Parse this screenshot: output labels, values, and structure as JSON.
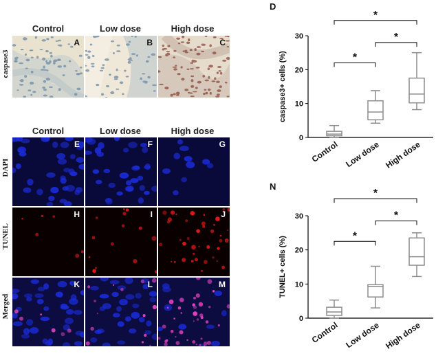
{
  "ihc": {
    "col_headers": [
      "Control",
      "Low dose",
      "High dose"
    ],
    "row_label": "caspase3",
    "panels": [
      "A",
      "B",
      "C"
    ]
  },
  "fluor": {
    "col_headers": [
      "Control",
      "Low dose",
      "High dose"
    ],
    "row_labels": [
      "DAPI",
      "TUNEL",
      "Merged"
    ],
    "panels": [
      [
        "E",
        "F",
        "G"
      ],
      [
        "H",
        "I",
        "J"
      ],
      [
        "K",
        "L",
        "M"
      ]
    ]
  },
  "colors": {
    "box_stroke": "#8c8c8c",
    "ihc_bg": "#efe4cf",
    "nuclei_blue": "#1a2bd6",
    "tunel_red": "#e01a1a"
  },
  "chart_data": [
    {
      "type": "box",
      "panel_letter": "D",
      "ylabel": "caspase3+ cells (%)",
      "categories": [
        "Control",
        "Low dose",
        "High dose"
      ],
      "ylim": [
        0,
        30
      ],
      "yticks": [
        0,
        10,
        20,
        30
      ],
      "boxes": [
        {
          "min": 0,
          "q1": 0.5,
          "median": 1.0,
          "q3": 1.8,
          "max": 3.5
        },
        {
          "min": 4.2,
          "q1": 5.2,
          "median": 7.5,
          "q3": 10.8,
          "max": 13.8
        },
        {
          "min": 8.2,
          "q1": 10.2,
          "median": 12.8,
          "q3": 17.5,
          "max": 25.0
        }
      ],
      "significance": [
        {
          "from": 0,
          "to": 1,
          "y": 22.0,
          "label": "*"
        },
        {
          "from": 1,
          "to": 2,
          "y": 28.0,
          "label": "*"
        },
        {
          "from": 0,
          "to": 2,
          "y": 34.5,
          "label": "*"
        }
      ]
    },
    {
      "type": "box",
      "panel_letter": "N",
      "ylabel": "TUNEL+ cells (%)",
      "categories": [
        "Control",
        "Low dose",
        "High dose"
      ],
      "ylim": [
        0,
        30
      ],
      "yticks": [
        0,
        10,
        20,
        30
      ],
      "boxes": [
        {
          "min": 0,
          "q1": 0.8,
          "median": 1.8,
          "q3": 3.2,
          "max": 5.3
        },
        {
          "min": 3.0,
          "q1": 6.2,
          "median": 9.3,
          "q3": 9.8,
          "max": 15.2
        },
        {
          "min": 12.2,
          "q1": 15.5,
          "median": 18.0,
          "q3": 23.5,
          "max": 25.0
        }
      ],
      "significance": [
        {
          "from": 0,
          "to": 1,
          "y": 22.5,
          "label": "*"
        },
        {
          "from": 1,
          "to": 2,
          "y": 28.5,
          "label": "*"
        },
        {
          "from": 0,
          "to": 2,
          "y": 35.0,
          "label": "*"
        }
      ]
    }
  ]
}
